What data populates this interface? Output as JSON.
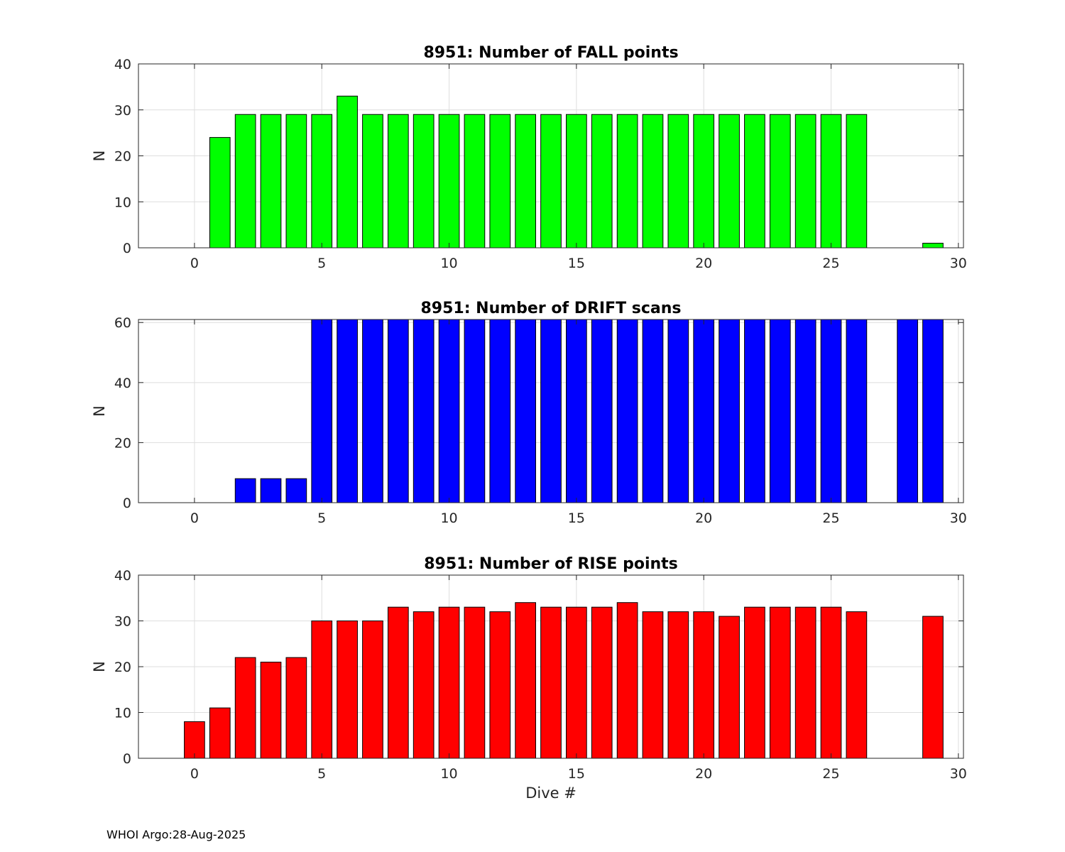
{
  "footer": {
    "text": "WHOI Argo:28-Aug-2025"
  },
  "chart_data": [
    {
      "type": "bar",
      "title": "8951: Number of FALL points",
      "xlabel": "",
      "ylabel": "N",
      "xlim": [
        -2.2,
        30.2
      ],
      "ylim": [
        0,
        40
      ],
      "xticks": [
        0,
        5,
        10,
        15,
        20,
        25,
        30
      ],
      "yticks": [
        0,
        10,
        20,
        30,
        40
      ],
      "grid": true,
      "color": "#00ff00",
      "x": [
        1,
        2,
        3,
        4,
        5,
        6,
        7,
        8,
        9,
        10,
        11,
        12,
        13,
        14,
        15,
        16,
        17,
        18,
        19,
        20,
        21,
        22,
        23,
        24,
        25,
        26,
        29
      ],
      "values": [
        24,
        29,
        29,
        29,
        29,
        33,
        29,
        29,
        29,
        29,
        29,
        29,
        29,
        29,
        29,
        29,
        29,
        29,
        29,
        29,
        29,
        29,
        29,
        29,
        29,
        29,
        1
      ]
    },
    {
      "type": "bar",
      "title": "8951: Number of DRIFT scans",
      "xlabel": "",
      "ylabel": "N",
      "xlim": [
        -2.2,
        30.2
      ],
      "ylim": [
        0,
        61
      ],
      "xticks": [
        0,
        5,
        10,
        15,
        20,
        25,
        30
      ],
      "yticks": [
        0,
        20,
        40,
        60
      ],
      "grid": true,
      "color": "#0000ff",
      "x": [
        -1,
        0,
        1,
        2,
        3,
        4,
        5,
        6,
        7,
        8,
        9,
        10,
        11,
        12,
        13,
        14,
        15,
        16,
        17,
        18,
        19,
        20,
        21,
        22,
        23,
        24,
        25,
        26,
        28,
        29
      ],
      "values": [
        0,
        0,
        0,
        8,
        8,
        8,
        61,
        61,
        61,
        61,
        61,
        61,
        61,
        61,
        61,
        61,
        61,
        61,
        61,
        61,
        61,
        61,
        61,
        61,
        61,
        61,
        61,
        61,
        61,
        61
      ]
    },
    {
      "type": "bar",
      "title": "8951: Number of RISE points",
      "xlabel": "Dive #",
      "ylabel": "N",
      "xlim": [
        -2.2,
        30.2
      ],
      "ylim": [
        0,
        40
      ],
      "xticks": [
        0,
        5,
        10,
        15,
        20,
        25,
        30
      ],
      "yticks": [
        0,
        10,
        20,
        30,
        40
      ],
      "grid": true,
      "color": "#ff0000",
      "x": [
        0,
        1,
        2,
        3,
        4,
        5,
        6,
        7,
        8,
        9,
        10,
        11,
        12,
        13,
        14,
        15,
        16,
        17,
        18,
        19,
        20,
        21,
        22,
        23,
        24,
        25,
        26,
        29
      ],
      "values": [
        8,
        11,
        22,
        21,
        22,
        30,
        30,
        30,
        33,
        32,
        33,
        33,
        32,
        34,
        33,
        33,
        33,
        34,
        32,
        32,
        32,
        31,
        33,
        33,
        33,
        33,
        32,
        31
      ]
    }
  ]
}
